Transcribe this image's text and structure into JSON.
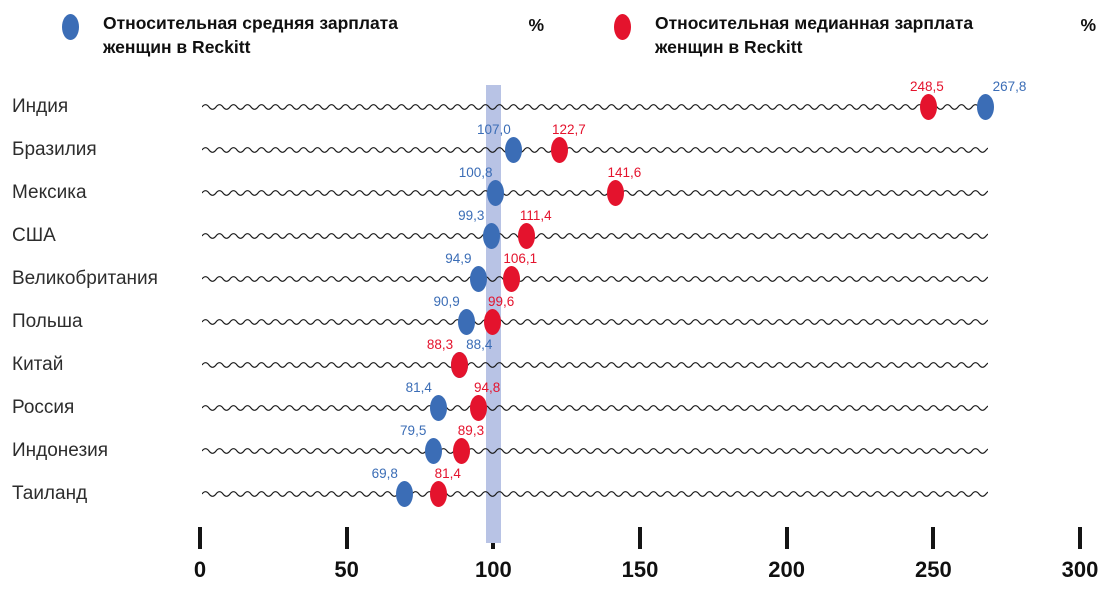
{
  "legend": {
    "average": {
      "label": "Относительная средняя зарплата женщин в Reckitt",
      "unit": "%"
    },
    "median": {
      "label": "Относительная медианная зарплата женщин в Reckitt",
      "unit": "%"
    }
  },
  "colors": {
    "average": "#3b6db6",
    "median": "#e4132d",
    "reference_band": "#b8c3e5"
  },
  "chart_data": {
    "type": "scatter",
    "title": "",
    "xlabel": "",
    "ylabel": "",
    "legend_position": "top",
    "x_axis": {
      "min": 0,
      "max": 300,
      "ticks": [
        "0",
        "50",
        "100",
        "150",
        "200",
        "250",
        "300"
      ],
      "reference_value": 100
    },
    "series": [
      {
        "key": "avg",
        "name": "Относительная средняя зарплата женщин в Reckitt",
        "color": "#3b6db6"
      },
      {
        "key": "median",
        "name": "Относительная медианная зарплата женщин в Reckitt",
        "color": "#e4132d"
      }
    ],
    "rows": [
      {
        "country": "Индия",
        "avg": 267.8,
        "avg_label": "267,8",
        "median": 248.5,
        "median_label": "248,5",
        "avg_dx": 24,
        "med_dx": -2
      },
      {
        "country": "Бразилия",
        "avg": 107.0,
        "avg_label": "107,0",
        "median": 122.7,
        "median_label": "122,7"
      },
      {
        "country": "Мексика",
        "avg": 100.8,
        "avg_label": "100,8",
        "median": 141.6,
        "median_label": "141,6"
      },
      {
        "country": "США",
        "avg": 99.3,
        "avg_label": "99,3",
        "median": 111.4,
        "median_label": "111,4"
      },
      {
        "country": "Великобритания",
        "avg": 94.9,
        "avg_label": "94,9",
        "median": 106.1,
        "median_label": "106,1"
      },
      {
        "country": "Польша",
        "avg": 90.9,
        "avg_label": "90,9",
        "median": 99.6,
        "median_label": "99,6"
      },
      {
        "country": "Китай",
        "avg": 88.4,
        "avg_label": "88,4",
        "median": 88.3,
        "median_label": "88,3",
        "avg_dx": 20,
        "med_dx": -19
      },
      {
        "country": "Россия",
        "avg": 81.4,
        "avg_label": "81,4",
        "median": 94.8,
        "median_label": "94,8"
      },
      {
        "country": "Индонезия",
        "avg": 79.5,
        "avg_label": "79,5",
        "median": 89.3,
        "median_label": "89,3"
      },
      {
        "country": "Таиланд",
        "avg": 69.8,
        "avg_label": "69,8",
        "median": 81.4,
        "median_label": "81,4"
      }
    ]
  }
}
